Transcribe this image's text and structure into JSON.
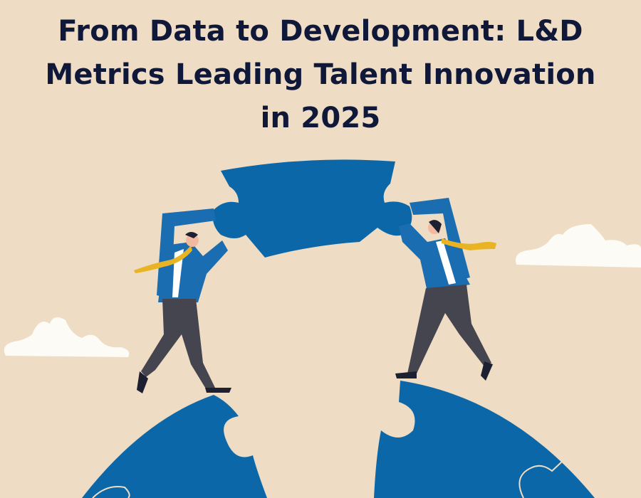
{
  "title": "From Data to Development: L&D Metrics Leading Talent Innovation in 2025",
  "colors": {
    "background": "#EEDCC4",
    "title": "#0F1838",
    "puzzle_blue": "#0B67A8",
    "suit_blue": "#1A6DB0",
    "tie_yellow": "#E9B423",
    "pants_gray": "#45454F",
    "cloud": "#FDFBF6"
  },
  "illustration": {
    "elements": [
      "puzzle-arc-left",
      "puzzle-arc-right",
      "puzzle-piece-top",
      "businessman-left",
      "businessman-right",
      "cloud-left",
      "cloud-right"
    ]
  }
}
